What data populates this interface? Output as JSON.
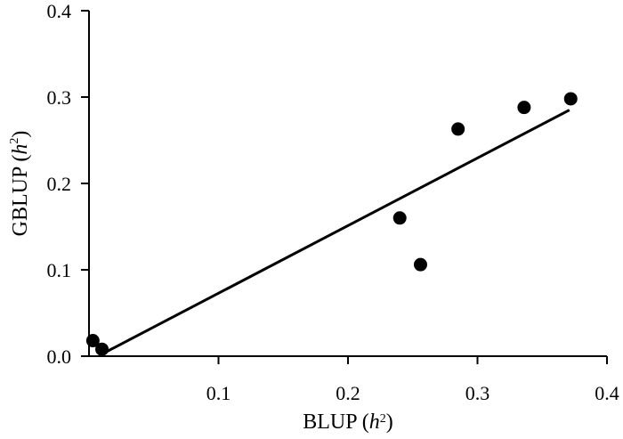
{
  "chart_data": {
    "type": "scatter",
    "title": "",
    "xlabel": {
      "prefix": "BLUP (",
      "var": "h",
      "sup": "2",
      "suffix": ")"
    },
    "ylabel": {
      "prefix": "GBLUP (",
      "var": "h",
      "sup": "2",
      "suffix": ")"
    },
    "xlim": [
      0,
      0.4
    ],
    "ylim": [
      0,
      0.4
    ],
    "x_ticks": [
      0.1,
      0.2,
      0.3,
      0.4
    ],
    "x_tick_labels": [
      "0.1",
      "0.2",
      "0.3",
      "0.4"
    ],
    "y_ticks": [
      0,
      0.1,
      0.2,
      0.3,
      0.4
    ],
    "y_tick_labels": [
      "0.0",
      "0.1",
      "0.2",
      "0.3",
      "0.4"
    ],
    "grid": false,
    "legend": "none",
    "points": [
      {
        "x": 0.003,
        "y": 0.018
      },
      {
        "x": 0.01,
        "y": 0.008
      },
      {
        "x": 0.24,
        "y": 0.16
      },
      {
        "x": 0.256,
        "y": 0.106
      },
      {
        "x": 0.285,
        "y": 0.263
      },
      {
        "x": 0.336,
        "y": 0.288
      },
      {
        "x": 0.372,
        "y": 0.298
      }
    ],
    "trendline": {
      "x": [
        0.012,
        0.371
      ],
      "y": [
        0.004,
        0.285
      ]
    },
    "colors": {
      "points": "#000000",
      "line": "#000000"
    }
  }
}
